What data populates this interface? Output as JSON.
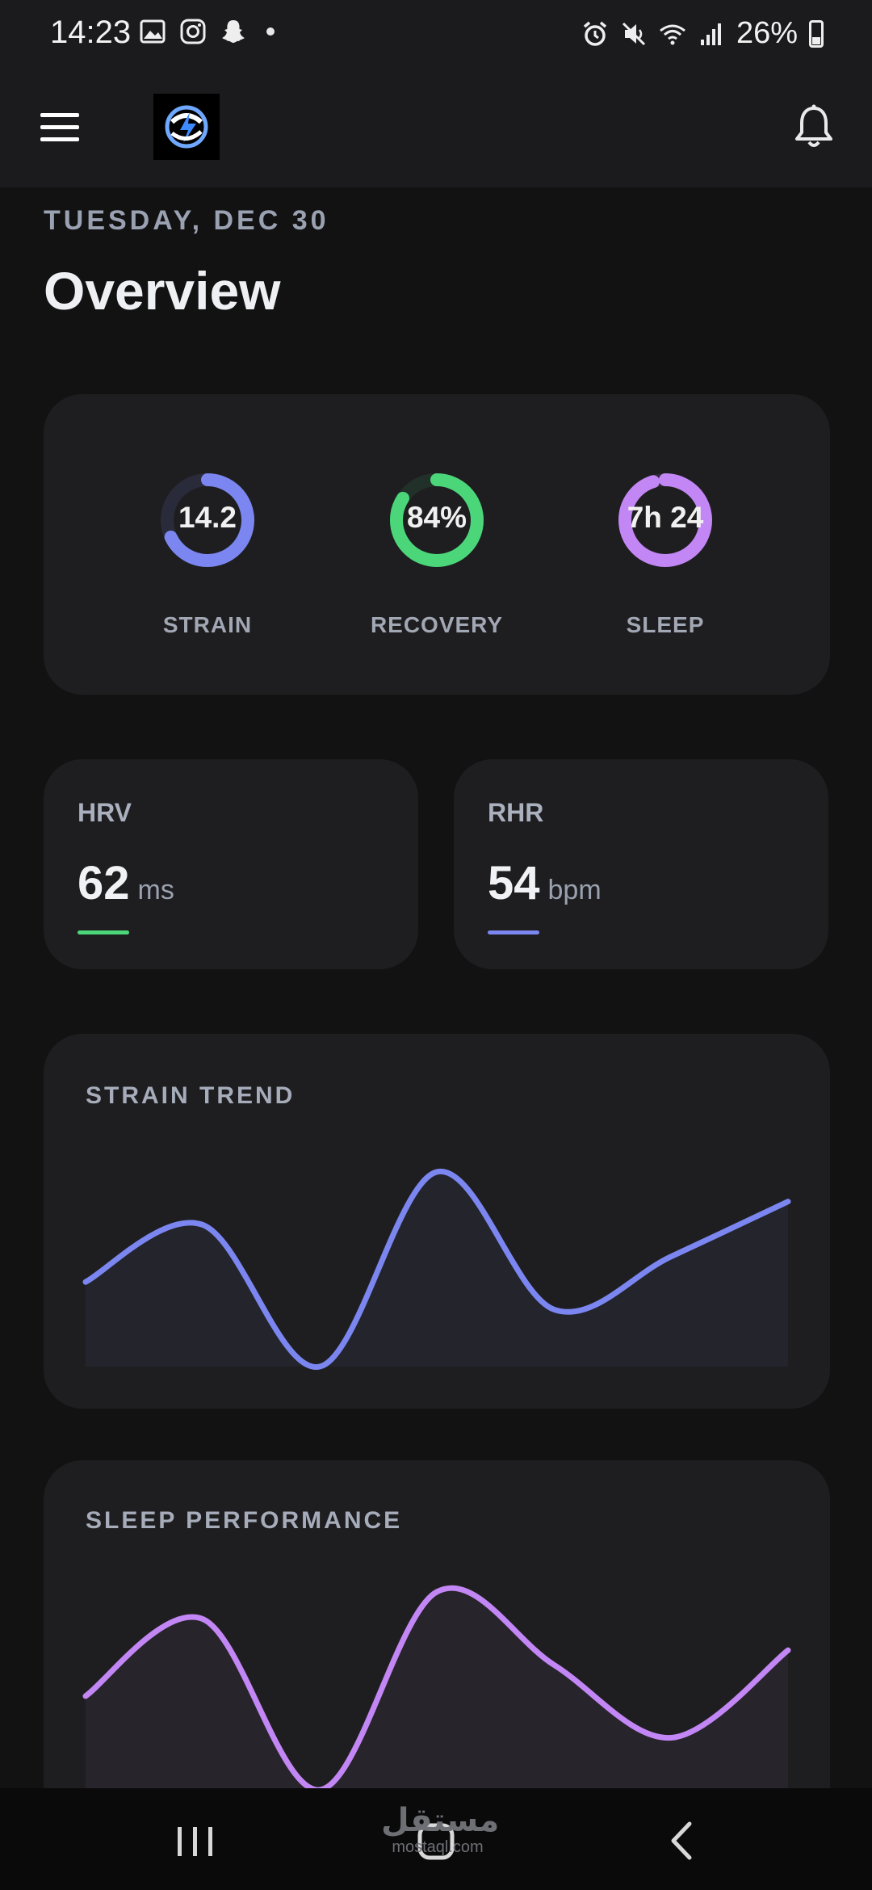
{
  "status_bar": {
    "time": "14:23",
    "battery": "26%",
    "left_icons": [
      "gallery-icon",
      "instagram-icon",
      "snapchat-icon",
      "dot-icon"
    ],
    "right_icons": [
      "alarm-icon",
      "mute-icon",
      "wifi-icon",
      "signal-icon",
      "battery-icon"
    ]
  },
  "header": {
    "menu_icon": "hamburger-icon",
    "bell_icon": "bell-icon"
  },
  "page": {
    "date": "TUESDAY, DEC 30",
    "title": "Overview"
  },
  "rings": [
    {
      "label": "STRAIN",
      "value": "14.2",
      "progress": 0.68,
      "color": "#7b86f0",
      "track": "#2a2b3a"
    },
    {
      "label": "RECOVERY",
      "value": "84%",
      "progress": 0.84,
      "color": "#4cd67a",
      "track": "#22302a"
    },
    {
      "label": "SLEEP",
      "value": "7h 24",
      "progress": 0.95,
      "color": "#c386f5",
      "track": "#302a3a"
    }
  ],
  "stats": [
    {
      "label": "HRV",
      "value": "62",
      "unit": "ms",
      "accent": "#4cd67a"
    },
    {
      "label": "RHR",
      "value": "54",
      "unit": "bpm",
      "accent": "#7b86f0"
    }
  ],
  "charts": [
    {
      "title": "STRAIN TREND",
      "color": "#7b86f0",
      "values": [
        0.4,
        0.67,
        0.0,
        0.92,
        0.27,
        0.52,
        0.78
      ]
    },
    {
      "title": "SLEEP PERFORMANCE",
      "color": "#c386f5",
      "values": [
        0.45,
        0.82,
        0.0,
        0.95,
        0.6,
        0.25,
        0.67
      ]
    }
  ],
  "watermark": {
    "arabic": "مستقل",
    "latin": "mostaql.com"
  },
  "nav": {
    "recent_icon": "recent-apps-icon",
    "home_icon": "home-icon",
    "back_icon": "back-icon"
  }
}
